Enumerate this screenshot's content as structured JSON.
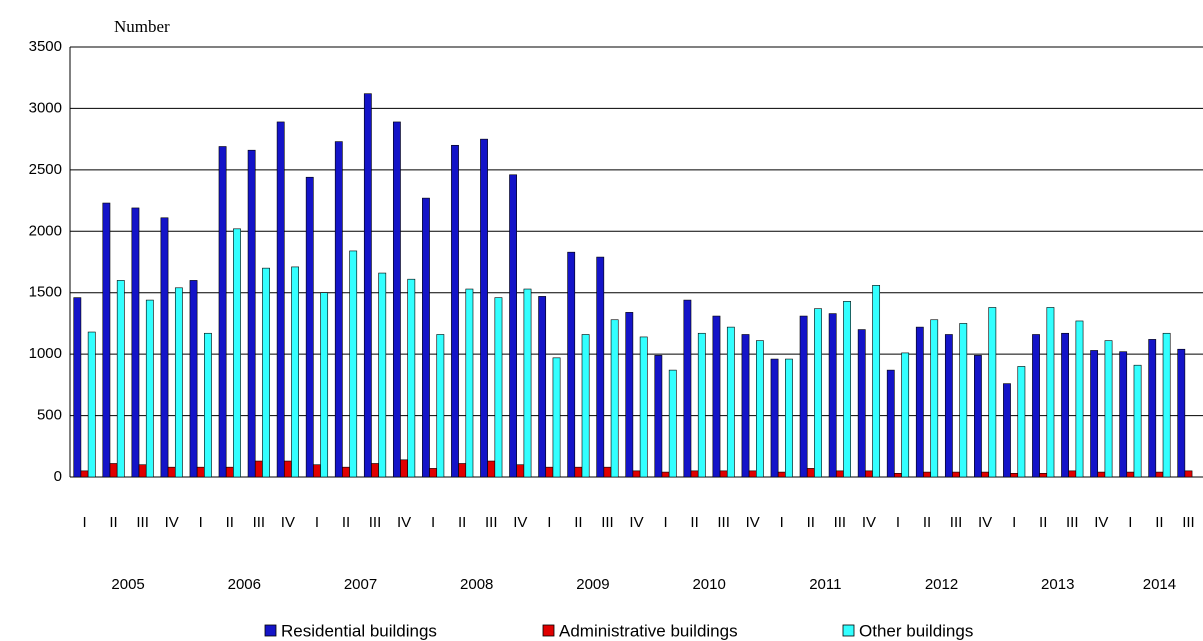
{
  "chart_data": {
    "type": "bar",
    "y_label": "Number",
    "categories": [
      "I",
      "II",
      "III",
      "IV",
      "I",
      "II",
      "III",
      "IV",
      "I",
      "II",
      "III",
      "IV",
      "I",
      "II",
      "III",
      "IV",
      "I",
      "II",
      "III",
      "IV",
      "I",
      "II",
      "III",
      "IV",
      "I",
      "II",
      "III",
      "IV",
      "I",
      "II",
      "III",
      "IV",
      "I",
      "II",
      "III",
      "IV",
      "I",
      "II",
      "III"
    ],
    "year_labels": [
      "2005",
      "2006",
      "2007",
      "2008",
      "2009",
      "2010",
      "2011",
      "2012",
      "2013",
      "2014"
    ],
    "series": [
      {
        "name": "Residential buildings",
        "color": "#1414c8",
        "values": [
          1460,
          2230,
          2190,
          2110,
          1600,
          2690,
          2660,
          2890,
          2440,
          2730,
          3120,
          2890,
          2270,
          2700,
          2750,
          2460,
          1470,
          1830,
          1790,
          1340,
          990,
          1440,
          1310,
          1160,
          960,
          1310,
          1330,
          1200,
          870,
          1220,
          1160,
          990,
          760,
          1160,
          1170,
          1030,
          1020,
          1120,
          1040
        ]
      },
      {
        "name": "Administrative buildings",
        "color": "#e00000",
        "values": [
          50,
          110,
          100,
          80,
          80,
          80,
          130,
          130,
          100,
          80,
          110,
          140,
          70,
          110,
          130,
          100,
          80,
          80,
          80,
          50,
          40,
          50,
          50,
          50,
          40,
          70,
          50,
          50,
          30,
          40,
          40,
          40,
          30,
          30,
          50,
          40,
          40,
          40,
          50
        ]
      },
      {
        "name": "Other buildings",
        "color": "#33ffff",
        "values": [
          1180,
          1600,
          1440,
          1540,
          1170,
          2020,
          1700,
          1710,
          1500,
          1840,
          1660,
          1610,
          1160,
          1530,
          1460,
          1530,
          970,
          1160,
          1280,
          1140,
          870,
          1170,
          1220,
          1110,
          960,
          1370,
          1430,
          1560,
          1010,
          1280,
          1250,
          1380,
          900,
          1380,
          1270,
          1110,
          910,
          1170,
          null
        ]
      }
    ],
    "ylim": [
      0,
      3500
    ],
    "yticks": [
      0,
      500,
      1000,
      1500,
      2000,
      2500,
      3000,
      3500
    ],
    "grid": true
  }
}
